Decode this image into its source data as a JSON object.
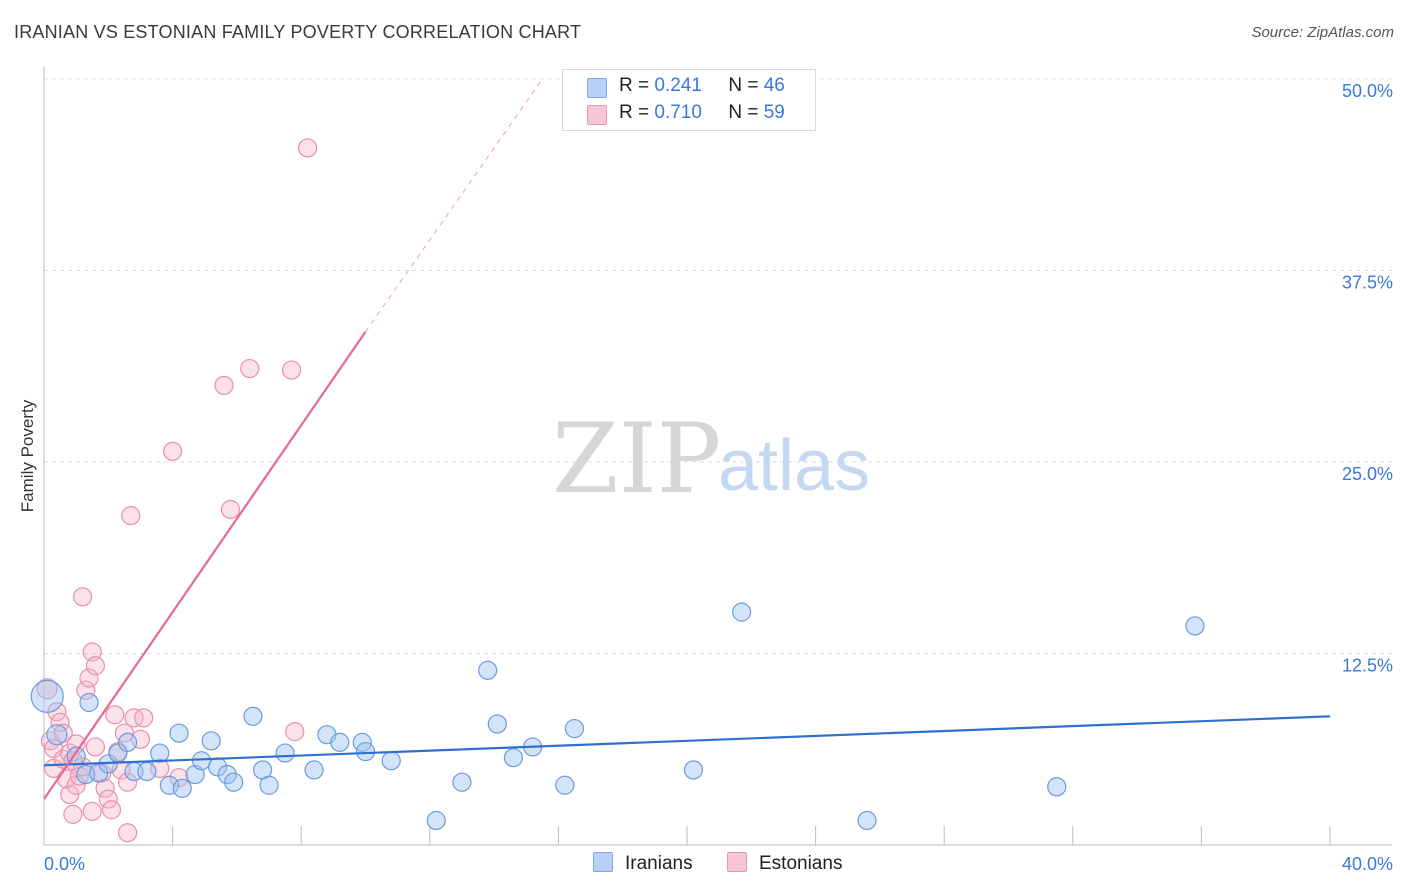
{
  "header": {
    "title": "IRANIAN VS ESTONIAN FAMILY POVERTY CORRELATION CHART",
    "source": "Source: ZipAtlas.com"
  },
  "watermark": {
    "zip": "ZIP",
    "atlas": "atlas"
  },
  "legend": {
    "rows": [
      {
        "r_label": "R =",
        "r_value": "0.241",
        "n_label": "N =",
        "n_value": "46",
        "color": "#b8d0f3",
        "border": "#7fa6e0"
      },
      {
        "r_label": "R =",
        "r_value": "0.710",
        "n_label": "N =",
        "n_value": "59",
        "color": "#f7c6d5",
        "border": "#e99ab2"
      }
    ]
  },
  "bottom_legend": {
    "iranians": "Iranians",
    "estonians": "Estonians"
  },
  "colors": {
    "iranians_fill": "rgba(160,195,240,0.45)",
    "iranians_stroke": "#6a9be0",
    "iranians_line": "#2f6fd0",
    "estonians_fill": "rgba(245,180,200,0.40)",
    "estonians_stroke": "#e990ad",
    "estonians_line": "#e46a92",
    "axis_text": "#3b78d8",
    "grid": "#dddddd"
  },
  "chart_data": {
    "type": "scatter",
    "title": "IRANIAN VS ESTONIAN FAMILY POVERTY CORRELATION CHART",
    "xlabel": "",
    "ylabel": "Family Poverty",
    "xlim": [
      0,
      40
    ],
    "ylim": [
      0,
      50
    ],
    "x_tick_labels": [
      {
        "value": 0,
        "label": "0.0%"
      },
      {
        "value": 40,
        "label": "40.0%"
      }
    ],
    "y_tick_labels": [
      {
        "value": 12.5,
        "label": "12.5%"
      },
      {
        "value": 25,
        "label": "25.0%"
      },
      {
        "value": 37.5,
        "label": "37.5%"
      },
      {
        "value": 50,
        "label": "50.0%"
      }
    ],
    "series": [
      {
        "name": "Iranians",
        "R": 0.241,
        "N": 46,
        "trend": {
          "x0": 0,
          "y0": 5.2,
          "x1": 40,
          "y1": 8.4
        },
        "points": [
          [
            0.1,
            9.7,
            16
          ],
          [
            0.4,
            7.2,
            10
          ],
          [
            1.0,
            5.8,
            9
          ],
          [
            1.3,
            4.6,
            9
          ],
          [
            1.4,
            9.3,
            9
          ],
          [
            1.7,
            4.7,
            9
          ],
          [
            2.0,
            5.3,
            9
          ],
          [
            2.3,
            6.0,
            9
          ],
          [
            2.6,
            6.7,
            9
          ],
          [
            2.8,
            4.8,
            9
          ],
          [
            3.2,
            4.8,
            9
          ],
          [
            3.6,
            6.0,
            9
          ],
          [
            3.9,
            3.9,
            9
          ],
          [
            4.2,
            7.3,
            9
          ],
          [
            4.3,
            3.7,
            9
          ],
          [
            4.7,
            4.6,
            9
          ],
          [
            4.9,
            5.5,
            9
          ],
          [
            5.2,
            6.8,
            9
          ],
          [
            5.4,
            5.1,
            9
          ],
          [
            5.7,
            4.6,
            9
          ],
          [
            5.9,
            4.1,
            9
          ],
          [
            6.5,
            8.4,
            9
          ],
          [
            6.8,
            4.9,
            9
          ],
          [
            7.0,
            3.9,
            9
          ],
          [
            7.5,
            6.0,
            9
          ],
          [
            8.4,
            4.9,
            9
          ],
          [
            8.8,
            7.2,
            9
          ],
          [
            9.2,
            6.7,
            9
          ],
          [
            9.9,
            6.7,
            9
          ],
          [
            10.0,
            6.1,
            9
          ],
          [
            10.8,
            5.5,
            9
          ],
          [
            12.2,
            1.6,
            9
          ],
          [
            13.0,
            4.1,
            9
          ],
          [
            13.8,
            11.4,
            9
          ],
          [
            14.1,
            7.9,
            9
          ],
          [
            14.6,
            5.7,
            9
          ],
          [
            15.2,
            6.4,
            9
          ],
          [
            16.2,
            3.9,
            9
          ],
          [
            16.5,
            7.6,
            9
          ],
          [
            20.2,
            4.9,
            9
          ],
          [
            21.7,
            15.2,
            9
          ],
          [
            25.6,
            1.6,
            9
          ],
          [
            31.5,
            3.8,
            9
          ],
          [
            35.8,
            14.3,
            9
          ]
        ]
      },
      {
        "name": "Estonians",
        "R": 0.71,
        "N": 59,
        "trend": {
          "x0": 0,
          "y0": 3.0,
          "x1": 10.0,
          "y1": 33.5
        },
        "trend_dashed": {
          "x0": 10.0,
          "y0": 33.5,
          "x1": 15.5,
          "y1": 50.0
        },
        "points": [
          [
            0.1,
            10.2,
            10
          ],
          [
            0.2,
            6.8,
            9
          ],
          [
            0.3,
            6.3,
            9
          ],
          [
            0.3,
            5.0,
            9
          ],
          [
            0.4,
            8.7,
            9
          ],
          [
            0.5,
            8.0,
            9
          ],
          [
            0.6,
            7.3,
            9
          ],
          [
            0.6,
            5.6,
            9
          ],
          [
            0.7,
            4.3,
            9
          ],
          [
            0.8,
            3.3,
            9
          ],
          [
            0.8,
            6.0,
            9
          ],
          [
            0.9,
            5.5,
            9
          ],
          [
            0.9,
            2.0,
            9
          ],
          [
            1.0,
            3.9,
            9
          ],
          [
            1.0,
            6.6,
            9
          ],
          [
            1.1,
            4.5,
            9
          ],
          [
            1.2,
            5.1,
            9
          ],
          [
            1.2,
            16.2,
            9
          ],
          [
            1.3,
            10.1,
            9
          ],
          [
            1.4,
            10.9,
            9
          ],
          [
            1.5,
            12.6,
            9
          ],
          [
            1.5,
            2.2,
            9
          ],
          [
            1.6,
            11.7,
            9
          ],
          [
            1.6,
            6.4,
            9
          ],
          [
            1.8,
            4.7,
            9
          ],
          [
            1.9,
            3.7,
            9
          ],
          [
            2.0,
            3.0,
            9
          ],
          [
            2.1,
            2.3,
            9
          ],
          [
            2.2,
            8.5,
            9
          ],
          [
            2.3,
            6.1,
            9
          ],
          [
            2.4,
            4.9,
            9
          ],
          [
            2.5,
            7.3,
            9
          ],
          [
            2.6,
            4.1,
            9
          ],
          [
            2.6,
            0.8,
            9
          ],
          [
            2.7,
            21.5,
            9
          ],
          [
            2.8,
            8.3,
            9
          ],
          [
            3.0,
            6.9,
            9
          ],
          [
            3.1,
            8.3,
            9
          ],
          [
            3.6,
            5.0,
            9
          ],
          [
            4.0,
            25.7,
            9
          ],
          [
            4.2,
            4.4,
            9
          ],
          [
            5.6,
            30.0,
            9
          ],
          [
            5.8,
            21.9,
            9
          ],
          [
            6.4,
            31.1,
            9
          ],
          [
            7.7,
            31.0,
            9
          ],
          [
            7.8,
            7.4,
            9
          ],
          [
            8.2,
            45.5,
            9
          ]
        ]
      }
    ]
  }
}
